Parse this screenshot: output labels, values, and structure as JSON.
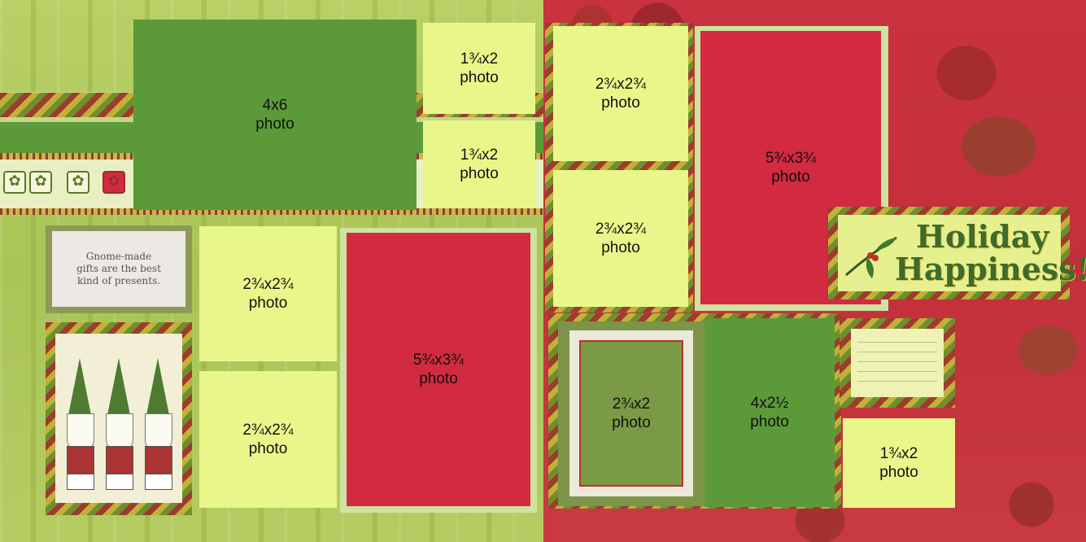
{
  "colors": {
    "left_background": "#b9d066",
    "right_background": "#c8333f",
    "photo_lime": "#e9f78a",
    "photo_green": "#5c9a39",
    "photo_red": "#d22a40"
  },
  "left_page": {
    "photos": {
      "large": {
        "size": "4x6",
        "word": "photo"
      },
      "small_top": {
        "size": "1¾x2",
        "word": "photo"
      },
      "small_bottom": {
        "size": "1¾x2",
        "word": "photo"
      },
      "square_top": {
        "size": "2¾x2¾",
        "word": "photo"
      },
      "square_bottom": {
        "size": "2¾x2¾",
        "word": "photo"
      },
      "tall": {
        "size": "5¾x3¾",
        "word": "photo"
      }
    },
    "quote_card": {
      "line1": "Gnome-made",
      "line2": "gifts are the best",
      "line3": "kind of presents."
    }
  },
  "right_page": {
    "photos": {
      "square_top": {
        "size": "2¾x2¾",
        "word": "photo"
      },
      "square_middle": {
        "size": "2¾x2¾",
        "word": "photo"
      },
      "tall": {
        "size": "5¾x3¾",
        "word": "photo"
      },
      "framed": {
        "size": "2¾x2",
        "word": "photo"
      },
      "medium": {
        "size": "4x2½",
        "word": "photo"
      },
      "small": {
        "size": "1¾x2",
        "word": "photo"
      }
    },
    "holiday_tag": {
      "word1": "Holiday",
      "word2": "Happiness!"
    }
  }
}
